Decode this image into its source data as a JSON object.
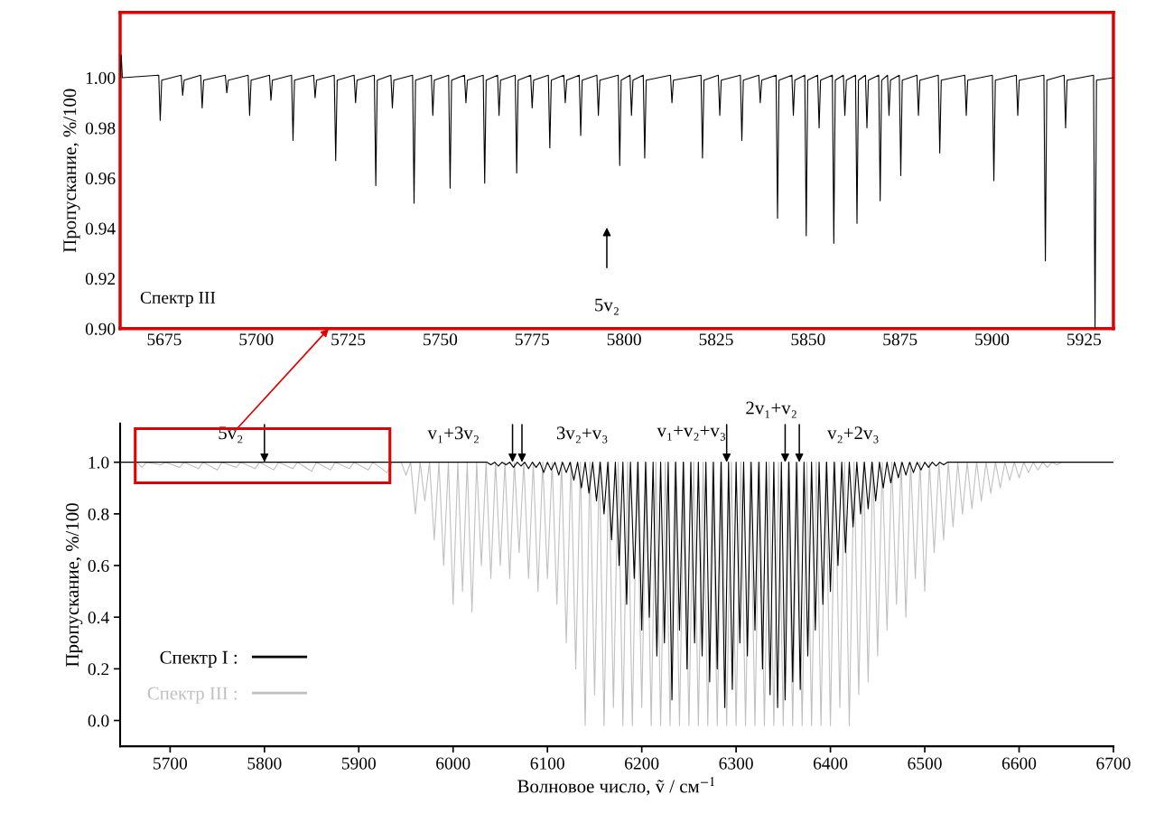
{
  "chart_data": [
    {
      "type": "line",
      "ylabel": "Пропускание, %/100",
      "xlim": [
        5663,
        5933
      ],
      "ylim": [
        0.9,
        1.026
      ],
      "xticks": [
        5675,
        5700,
        5725,
        5750,
        5775,
        5800,
        5825,
        5850,
        5875,
        5900,
        5925
      ],
      "yticks": [
        {
          "value": 0.9,
          "label": "0.90"
        },
        {
          "value": 0.92,
          "label": "0.92"
        },
        {
          "value": 0.94,
          "label": "0.94"
        },
        {
          "value": 0.96,
          "label": "0.96"
        },
        {
          "value": 0.98,
          "label": "0.98"
        },
        {
          "value": 1.0,
          "label": "1.00"
        }
      ],
      "annotations": [
        "Спектр III",
        "5v₂"
      ],
      "series": [
        {
          "color": "#000000",
          "x": [
            5663,
            5663.3,
            5663.6,
            5673.5,
            5673.9,
            5674.3,
            5679.6,
            5680,
            5680.4,
            5684.9,
            5685.3,
            5685.7,
            5691.6,
            5692,
            5692.4,
            5697.8,
            5698.2,
            5698.6,
            5703.6,
            5704,
            5704.4,
            5709.6,
            5710,
            5710.4,
            5715.6,
            5716,
            5716.4,
            5721.2,
            5721.6,
            5722,
            5726.6,
            5727,
            5727.4,
            5732.1,
            5732.5,
            5732.9,
            5736.6,
            5737,
            5737.4,
            5742.5,
            5742.9,
            5743.3,
            5747.6,
            5748,
            5748.4,
            5752.3,
            5752.7,
            5753.1,
            5756.6,
            5757,
            5757.4,
            5761.7,
            5762.1,
            5762.5,
            5765.6,
            5766,
            5766.4,
            5770.4,
            5770.8,
            5771.2,
            5774.6,
            5775,
            5775.4,
            5779.4,
            5779.8,
            5780.2,
            5783.6,
            5784,
            5784.4,
            5787.8,
            5788.2,
            5788.6,
            5792.6,
            5793,
            5793.4,
            5798.4,
            5798.8,
            5799.2,
            5801.6,
            5802,
            5802.4,
            5805.2,
            5805.6,
            5806,
            5812.6,
            5813,
            5813.4,
            5820.9,
            5821.3,
            5821.7,
            5825.6,
            5826,
            5826.4,
            5831.6,
            5832,
            5832.4,
            5836.6,
            5837,
            5837.4,
            5841.3,
            5841.7,
            5842.1,
            5845.6,
            5846,
            5846.4,
            5849.1,
            5849.5,
            5849.9,
            5852.6,
            5853,
            5853.4,
            5856.6,
            5857,
            5857.4,
            5859.6,
            5860,
            5860.4,
            5862.9,
            5863.3,
            5863.7,
            5865.6,
            5866,
            5866.4,
            5869.2,
            5869.6,
            5870,
            5871.6,
            5872,
            5872.4,
            5874.8,
            5875.2,
            5875.6,
            5879.6,
            5880,
            5880.4,
            5885.4,
            5885.8,
            5886.2,
            5892.6,
            5893,
            5893.4,
            5900.1,
            5900.5,
            5900.9,
            5906.6,
            5907,
            5907.4,
            5914.1,
            5914.5,
            5914.9,
            5919.6,
            5920,
            5920.4,
            5927.6,
            5928,
            5928.4,
            5933
          ],
          "values": [
            1.0,
            1.009,
            1.0,
            1.001,
            0.983,
            0.999,
            1.001,
            0.993,
            0.999,
            1.001,
            0.988,
            0.999,
            1.001,
            0.994,
            0.999,
            1.001,
            0.985,
            0.999,
            1.001,
            0.991,
            0.999,
            1.001,
            0.975,
            0.999,
            1.001,
            0.992,
            0.999,
            1.001,
            0.967,
            0.999,
            1.001,
            0.99,
            0.999,
            1.001,
            0.957,
            0.999,
            1.001,
            0.988,
            0.999,
            1.001,
            0.95,
            0.999,
            1.001,
            0.985,
            0.999,
            1.001,
            0.956,
            0.999,
            1.001,
            0.99,
            0.999,
            1.001,
            0.958,
            0.999,
            1.001,
            0.985,
            0.999,
            1.001,
            0.962,
            0.999,
            1.001,
            0.988,
            0.999,
            1.001,
            0.972,
            0.999,
            1.001,
            0.99,
            0.999,
            1.001,
            0.977,
            0.999,
            1.001,
            0.985,
            0.999,
            1.001,
            0.965,
            0.999,
            1.001,
            0.985,
            0.999,
            1.001,
            0.968,
            0.999,
            1.001,
            0.99,
            0.999,
            1.001,
            0.968,
            0.999,
            1.001,
            0.985,
            0.999,
            1.001,
            0.975,
            0.999,
            1.001,
            0.99,
            0.999,
            1.001,
            0.944,
            0.999,
            1.001,
            0.985,
            0.999,
            1.001,
            0.937,
            0.999,
            1.001,
            0.98,
            0.999,
            1.001,
            0.934,
            0.999,
            1.001,
            0.985,
            0.999,
            1.001,
            0.942,
            0.999,
            1.001,
            0.98,
            0.999,
            1.001,
            0.951,
            0.999,
            1.001,
            0.985,
            0.999,
            1.001,
            0.961,
            0.999,
            1.001,
            0.985,
            0.999,
            1.001,
            0.97,
            0.999,
            1.001,
            0.985,
            0.999,
            1.001,
            0.959,
            0.999,
            1.001,
            0.985,
            0.999,
            1.001,
            0.927,
            0.999,
            1.001,
            0.98,
            0.999,
            1.001,
            0.9,
            0.999,
            1.0
          ]
        }
      ]
    },
    {
      "type": "line",
      "xlabel": "Волновое число, ṽ / см$^{−1}$",
      "ylabel": "Пропускание, %/100",
      "xlim": [
        5647,
        6700
      ],
      "ylim": [
        -0.1,
        1.15
      ],
      "xticks": [
        5700,
        5800,
        5900,
        6000,
        6100,
        6200,
        6300,
        6400,
        6500,
        6600,
        6700
      ],
      "yticks": [
        {
          "value": 0,
          "label": "0.0"
        },
        0.2,
        0.4,
        0.6,
        0.8,
        {
          "value": 1,
          "label": "1.0"
        }
      ],
      "legend": "bottom left",
      "annotations": [
        {
          "text": "5v₂",
          "x": 5800,
          "y": 1.0
        },
        {
          "text": "v₁+3v₂",
          "x": 6063,
          "y": 1.0
        },
        {
          "text": "3v₂+v₃",
          "x": 6073,
          "y": 1.0
        },
        {
          "text": "v₁+v₂+v₃",
          "x": 6290,
          "y": 1.0
        },
        {
          "text": "2v₁+v₂",
          "x": 6352,
          "y": 1.0
        },
        {
          "text": "v₂+2v₃",
          "x": 6367,
          "y": 1.0
        }
      ],
      "series": [
        {
          "name": "Спектр I :",
          "color": "#000000",
          "x": [
            5647,
            6036,
            6040,
            6044,
            6048,
            6052,
            6056,
            6060,
            6064,
            6068,
            6072,
            6076,
            6080,
            6084,
            6088,
            6092,
            6096,
            6100,
            6104,
            6108,
            6112,
            6116,
            6120,
            6124,
            6128,
            6132,
            6136,
            6140,
            6144,
            6148,
            6152,
            6156,
            6160,
            6164,
            6168,
            6172,
            6176,
            6180,
            6184,
            6188,
            6192,
            6196,
            6200,
            6204,
            6208,
            6212,
            6216,
            6220,
            6224,
            6228,
            6232,
            6236,
            6240,
            6244,
            6248,
            6252,
            6256,
            6260,
            6264,
            6268,
            6272,
            6276,
            6280,
            6284,
            6288,
            6292,
            6296,
            6300,
            6304,
            6308,
            6312,
            6316,
            6320,
            6324,
            6328,
            6332,
            6336,
            6340,
            6344,
            6348,
            6352,
            6356,
            6360,
            6364,
            6368,
            6372,
            6376,
            6380,
            6384,
            6388,
            6392,
            6396,
            6400,
            6404,
            6408,
            6412,
            6416,
            6420,
            6424,
            6428,
            6432,
            6436,
            6440,
            6444,
            6448,
            6452,
            6456,
            6460,
            6464,
            6468,
            6472,
            6476,
            6480,
            6484,
            6488,
            6492,
            6496,
            6500,
            6504,
            6508,
            6512,
            6516,
            6520,
            6524,
            6700
          ],
          "values": [
            1.0,
            1.0,
            0.99,
            1.0,
            0.985,
            1.0,
            0.99,
            1.0,
            0.98,
            1.0,
            0.985,
            1.0,
            0.975,
            1.0,
            0.98,
            1.0,
            0.96,
            1.0,
            0.97,
            1.0,
            0.95,
            1.0,
            0.96,
            1.0,
            0.93,
            1.0,
            0.9,
            1.0,
            0.88,
            1.0,
            0.85,
            1.0,
            0.8,
            1.0,
            0.7,
            1.0,
            0.6,
            1.0,
            0.45,
            1.0,
            0.55,
            1.0,
            0.35,
            1.0,
            0.4,
            1.0,
            0.25,
            1.0,
            0.3,
            1.0,
            0.08,
            1.0,
            0.35,
            1.0,
            0.2,
            1.0,
            0.3,
            1.0,
            0.25,
            1.0,
            0.15,
            1.0,
            0.2,
            1.0,
            0.05,
            1.0,
            0.12,
            1.0,
            0.3,
            1.0,
            0.25,
            1.0,
            0.35,
            1.0,
            0.2,
            1.0,
            0.1,
            1.0,
            0.05,
            1.0,
            0.08,
            1.0,
            0.15,
            1.0,
            0.12,
            1.0,
            0.25,
            1.0,
            0.35,
            1.0,
            0.45,
            1.0,
            0.5,
            1.0,
            0.6,
            1.0,
            0.65,
            1.0,
            0.75,
            1.0,
            0.8,
            1.0,
            0.82,
            1.0,
            0.85,
            1.0,
            0.9,
            1.0,
            0.92,
            1.0,
            0.94,
            1.0,
            0.95,
            1.0,
            0.96,
            1.0,
            0.97,
            1.0,
            0.98,
            1.0,
            0.985,
            1.0,
            0.99,
            1.0,
            1.0
          ]
        },
        {
          "name": "Спектр III :",
          "color": "#c0c0c0",
          "x": [
            5647,
            5665,
            5670,
            5675,
            5690,
            5695,
            5710,
            5715,
            5730,
            5735,
            5750,
            5755,
            5770,
            5775,
            5790,
            5795,
            5810,
            5815,
            5830,
            5835,
            5850,
            5855,
            5870,
            5875,
            5890,
            5895,
            5910,
            5915,
            5930,
            5935,
            5945,
            5950,
            5955,
            5960,
            5965,
            5970,
            5975,
            5980,
            5985,
            5990,
            5995,
            6000,
            6005,
            6010,
            6015,
            6020,
            6025,
            6030,
            6035,
            6040,
            6045,
            6050,
            6055,
            6060,
            6065,
            6070,
            6075,
            6080,
            6085,
            6090,
            6095,
            6100,
            6105,
            6110,
            6115,
            6120,
            6125,
            6130,
            6135,
            6140,
            6145,
            6150,
            6155,
            6160,
            6165,
            6170,
            6175,
            6180,
            6185,
            6190,
            6195,
            6200,
            6205,
            6210,
            6215,
            6220,
            6225,
            6230,
            6235,
            6240,
            6245,
            6250,
            6255,
            6260,
            6265,
            6270,
            6275,
            6280,
            6285,
            6290,
            6295,
            6300,
            6305,
            6310,
            6315,
            6320,
            6325,
            6330,
            6335,
            6340,
            6345,
            6350,
            6355,
            6360,
            6365,
            6370,
            6375,
            6380,
            6385,
            6390,
            6395,
            6400,
            6405,
            6410,
            6415,
            6420,
            6425,
            6430,
            6435,
            6440,
            6445,
            6450,
            6455,
            6460,
            6465,
            6470,
            6475,
            6480,
            6485,
            6490,
            6495,
            6500,
            6505,
            6510,
            6515,
            6520,
            6525,
            6530,
            6535,
            6540,
            6545,
            6550,
            6555,
            6560,
            6565,
            6570,
            6575,
            6580,
            6585,
            6590,
            6595,
            6600,
            6605,
            6610,
            6615,
            6620,
            6625,
            6630,
            6635,
            6640,
            6645,
            6700
          ],
          "values": [
            1.0,
            1.0,
            0.98,
            1.0,
            0.99,
            1.0,
            0.98,
            1.0,
            0.975,
            1.0,
            0.97,
            1.0,
            0.98,
            1.0,
            0.975,
            1.0,
            0.97,
            1.0,
            0.975,
            1.0,
            0.965,
            1.0,
            0.97,
            1.0,
            0.975,
            1.0,
            0.97,
            1.0,
            0.96,
            1.0,
            1.0,
            0.95,
            1.0,
            0.8,
            1.0,
            0.85,
            1.0,
            0.7,
            1.0,
            0.6,
            1.0,
            0.45,
            1.0,
            0.5,
            1.0,
            0.42,
            1.0,
            0.6,
            1.0,
            0.55,
            1.0,
            0.6,
            1.0,
            0.55,
            1.0,
            0.65,
            1.0,
            0.55,
            1.0,
            0.5,
            1.0,
            0.55,
            1.0,
            0.45,
            1.0,
            0.3,
            1.0,
            0.2,
            1.0,
            -0.02,
            1.0,
            0.1,
            1.0,
            -0.02,
            1.0,
            0.05,
            1.0,
            -0.02,
            1.0,
            -0.02,
            1.0,
            0.05,
            1.0,
            -0.02,
            1.0,
            -0.02,
            1.0,
            -0.02,
            1.0,
            -0.02,
            1.0,
            -0.02,
            1.0,
            -0.02,
            1.0,
            -0.02,
            1.0,
            -0.02,
            1.0,
            -0.02,
            1.0,
            -0.02,
            1.0,
            -0.02,
            1.0,
            -0.02,
            1.0,
            -0.02,
            1.0,
            -0.02,
            1.0,
            -0.02,
            1.0,
            -0.02,
            1.0,
            -0.02,
            1.0,
            -0.02,
            1.0,
            -0.02,
            1.0,
            -0.02,
            1.0,
            0.05,
            1.0,
            -0.02,
            1.0,
            0.1,
            1.0,
            0.15,
            1.0,
            0.25,
            1.0,
            0.35,
            1.0,
            0.45,
            1.0,
            0.4,
            1.0,
            0.55,
            1.0,
            0.5,
            1.0,
            0.65,
            1.0,
            0.7,
            1.0,
            0.75,
            1.0,
            0.8,
            1.0,
            0.82,
            1.0,
            0.85,
            1.0,
            0.88,
            1.0,
            0.9,
            1.0,
            0.93,
            1.0,
            0.94,
            1.0,
            0.96,
            1.0,
            0.97,
            1.0,
            0.98,
            1.0,
            0.99,
            1.0,
            1.0
          ]
        }
      ]
    }
  ]
}
